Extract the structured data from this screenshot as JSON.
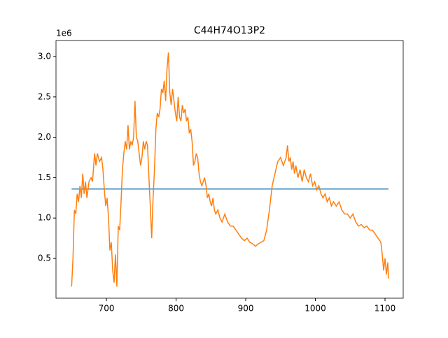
{
  "chart_data": {
    "type": "line",
    "title": "C44H74O13P2",
    "y_offset_label": "1e6",
    "xlim": [
      627.6,
      1126.1
    ],
    "ylim": [
      0.007,
      3.199
    ],
    "xticks": [
      700,
      800,
      900,
      1000,
      1100
    ],
    "yticks": [
      0.5,
      {
        "value": 1,
        "label": "1.0"
      },
      1.5,
      {
        "value": 2,
        "label": "2.0"
      },
      2.5,
      {
        "value": 3,
        "label": "3.0"
      }
    ],
    "grid": false,
    "series": [
      {
        "color": "#1f77b4",
        "x": [
          650,
          1105
        ],
        "values": [
          1.36,
          1.36
        ]
      },
      {
        "color": "#ff7f0e",
        "x": [
          650,
          652,
          654,
          656,
          658,
          660,
          662,
          664,
          666,
          668,
          670,
          672,
          675,
          678,
          680,
          683,
          685,
          687,
          690,
          693,
          695,
          697,
          699,
          701,
          703,
          705,
          707,
          709,
          711,
          713,
          715,
          717,
          719,
          721,
          723,
          725,
          727,
          729,
          731,
          733,
          735,
          737,
          739,
          741,
          743,
          745,
          747,
          749,
          751,
          753,
          755,
          757,
          759,
          761,
          763,
          765,
          767,
          769,
          771,
          773,
          775,
          777,
          779,
          781,
          783,
          785,
          787,
          789,
          791,
          793,
          795,
          797,
          799,
          801,
          803,
          805,
          807,
          809,
          811,
          813,
          815,
          817,
          819,
          821,
          823,
          825,
          827,
          829,
          831,
          833,
          835,
          837,
          839,
          841,
          843,
          845,
          847,
          849,
          851,
          853,
          855,
          857,
          860,
          863,
          866,
          870,
          874,
          878,
          882,
          886,
          890,
          894,
          898,
          902,
          906,
          910,
          914,
          918,
          922,
          926,
          930,
          934,
          938,
          942,
          946,
          950,
          954,
          958,
          960,
          962,
          964,
          966,
          968,
          970,
          972,
          975,
          978,
          981,
          984,
          987,
          990,
          993,
          996,
          999,
          1002,
          1005,
          1008,
          1011,
          1014,
          1017,
          1020,
          1023,
          1026,
          1030,
          1034,
          1038,
          1042,
          1046,
          1050,
          1054,
          1058,
          1062,
          1066,
          1070,
          1074,
          1078,
          1082,
          1086,
          1090,
          1094,
          1096,
          1098,
          1100,
          1102,
          1104,
          1105
        ],
        "values": [
          0.15,
          0.5,
          1.1,
          1.05,
          1.3,
          1.2,
          1.4,
          1.25,
          1.55,
          1.3,
          1.45,
          1.25,
          1.45,
          1.5,
          1.45,
          1.8,
          1.65,
          1.8,
          1.7,
          1.75,
          1.6,
          1.35,
          1.15,
          1.25,
          1.0,
          0.6,
          0.7,
          0.35,
          0.2,
          0.55,
          0.15,
          0.9,
          0.85,
          1.2,
          1.6,
          1.8,
          1.95,
          1.85,
          2.15,
          1.85,
          1.95,
          1.9,
          2.0,
          2.45,
          2.0,
          1.95,
          1.8,
          1.65,
          1.75,
          1.95,
          1.85,
          1.95,
          1.9,
          1.5,
          1.15,
          0.75,
          1.25,
          1.6,
          2.1,
          2.3,
          2.25,
          2.35,
          2.6,
          2.55,
          2.7,
          2.45,
          2.85,
          3.05,
          2.55,
          2.4,
          2.6,
          2.45,
          2.3,
          2.2,
          2.5,
          2.25,
          2.2,
          2.4,
          2.3,
          2.35,
          2.2,
          2.25,
          2.05,
          2.1,
          1.95,
          1.65,
          1.7,
          1.8,
          1.75,
          1.55,
          1.45,
          1.4,
          1.45,
          1.5,
          1.4,
          1.25,
          1.3,
          1.2,
          1.15,
          1.25,
          1.1,
          1.05,
          1.1,
          1.0,
          0.95,
          1.05,
          0.95,
          0.9,
          0.9,
          0.85,
          0.8,
          0.75,
          0.72,
          0.75,
          0.7,
          0.68,
          0.65,
          0.68,
          0.7,
          0.72,
          0.85,
          1.1,
          1.4,
          1.55,
          1.7,
          1.75,
          1.65,
          1.75,
          1.9,
          1.7,
          1.75,
          1.6,
          1.7,
          1.55,
          1.65,
          1.5,
          1.6,
          1.45,
          1.6,
          1.5,
          1.45,
          1.55,
          1.4,
          1.45,
          1.35,
          1.4,
          1.3,
          1.25,
          1.3,
          1.2,
          1.25,
          1.15,
          1.2,
          1.15,
          1.2,
          1.1,
          1.05,
          1.05,
          1.0,
          1.05,
          0.95,
          0.9,
          0.92,
          0.88,
          0.9,
          0.85,
          0.85,
          0.8,
          0.75,
          0.7,
          0.55,
          0.35,
          0.5,
          0.3,
          0.45,
          0.25
        ]
      }
    ]
  }
}
